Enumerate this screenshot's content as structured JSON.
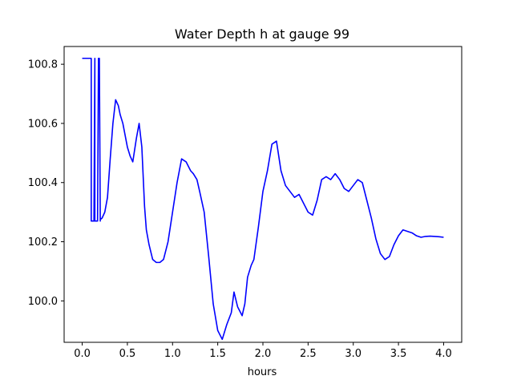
{
  "chart_data": {
    "type": "line",
    "title": "Water Depth h at gauge 99",
    "xlabel": "hours",
    "ylabel": "",
    "xlim": [
      -0.2,
      4.2
    ],
    "ylim": [
      99.86,
      100.86
    ],
    "xticks": [
      0.0,
      0.5,
      1.0,
      1.5,
      2.0,
      2.5,
      3.0,
      3.5,
      4.0
    ],
    "xtick_labels": [
      "0.0",
      "0.5",
      "1.0",
      "1.5",
      "2.0",
      "2.5",
      "3.0",
      "3.5",
      "4.0"
    ],
    "yticks": [
      100.0,
      100.2,
      100.4,
      100.6,
      100.8
    ],
    "ytick_labels": [
      "100.0",
      "100.2",
      "100.4",
      "100.6",
      "100.8"
    ],
    "grid": false,
    "series": [
      {
        "color": "#0000ff",
        "x": [
          0.0,
          0.09,
          0.1,
          0.1,
          0.13,
          0.14,
          0.14,
          0.17,
          0.18,
          0.19,
          0.2,
          0.2,
          0.22,
          0.25,
          0.28,
          0.31,
          0.34,
          0.37,
          0.4,
          0.42,
          0.45,
          0.5,
          0.53,
          0.56,
          0.6,
          0.63,
          0.66,
          0.69,
          0.71,
          0.74,
          0.78,
          0.82,
          0.86,
          0.9,
          0.95,
          1.0,
          1.05,
          1.1,
          1.15,
          1.2,
          1.23,
          1.27,
          1.3,
          1.35,
          1.4,
          1.45,
          1.5,
          1.55,
          1.6,
          1.65,
          1.68,
          1.72,
          1.77,
          1.8,
          1.83,
          1.87,
          1.9,
          1.95,
          2.0,
          2.05,
          2.1,
          2.15,
          2.2,
          2.25,
          2.3,
          2.35,
          2.4,
          2.5,
          2.55,
          2.6,
          2.65,
          2.7,
          2.75,
          2.8,
          2.85,
          2.9,
          2.95,
          3.0,
          3.05,
          3.1,
          3.15,
          3.2,
          3.25,
          3.3,
          3.35,
          3.4,
          3.45,
          3.5,
          3.55,
          3.6,
          3.65,
          3.7,
          3.75,
          3.8,
          3.85,
          3.9,
          3.95,
          4.0
        ],
        "y": [
          100.82,
          100.82,
          100.82,
          100.27,
          100.27,
          100.82,
          100.27,
          100.27,
          100.82,
          100.82,
          100.27,
          100.275,
          100.28,
          100.3,
          100.35,
          100.48,
          100.6,
          100.68,
          100.66,
          100.63,
          100.6,
          100.52,
          100.49,
          100.47,
          100.55,
          100.6,
          100.52,
          100.32,
          100.24,
          100.19,
          100.14,
          100.13,
          100.13,
          100.14,
          100.2,
          100.3,
          100.4,
          100.48,
          100.47,
          100.44,
          100.43,
          100.41,
          100.37,
          100.3,
          100.15,
          99.99,
          99.9,
          99.87,
          99.92,
          99.96,
          100.03,
          99.98,
          99.95,
          99.99,
          100.08,
          100.12,
          100.14,
          100.25,
          100.37,
          100.44,
          100.53,
          100.54,
          100.44,
          100.39,
          100.37,
          100.35,
          100.36,
          100.3,
          100.29,
          100.34,
          100.41,
          100.42,
          100.41,
          100.43,
          100.41,
          100.38,
          100.37,
          100.39,
          100.41,
          100.4,
          100.34,
          100.28,
          100.21,
          100.16,
          100.14,
          100.15,
          100.19,
          100.22,
          100.24,
          100.235,
          100.23,
          100.22,
          100.215,
          100.218,
          100.219,
          100.218,
          100.217,
          100.215
        ]
      }
    ]
  }
}
